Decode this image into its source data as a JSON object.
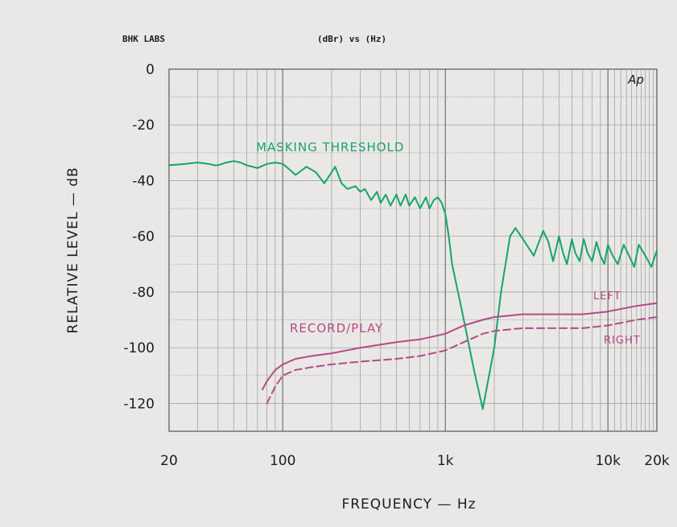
{
  "header": {
    "left": "BHK LABS",
    "center": "(dBr)  vs   (Hz)",
    "mark": "Ap"
  },
  "colors": {
    "masking": "#17a46a",
    "left": "#b54a82",
    "right": "#b54a82",
    "grid": "#999999",
    "background": "#e9e8e7"
  },
  "chart_data": {
    "type": "line",
    "xscale": "log",
    "xlim": [
      20,
      20000
    ],
    "ylim": [
      -130,
      0
    ],
    "xlabel": "FREQUENCY — Hz",
    "ylabel": "RELATIVE LEVEL — dB",
    "xticks": [
      {
        "value": 20,
        "label": "20"
      },
      {
        "value": 100,
        "label": "100"
      },
      {
        "value": 1000,
        "label": "1k"
      },
      {
        "value": 10000,
        "label": "10k"
      },
      {
        "value": 20000,
        "label": "20k"
      }
    ],
    "yticks": [
      {
        "value": 0,
        "label": "0"
      },
      {
        "value": -20,
        "label": "-20"
      },
      {
        "value": -40,
        "label": "-40"
      },
      {
        "value": -60,
        "label": "-60"
      },
      {
        "value": -80,
        "label": "-80"
      },
      {
        "value": -100,
        "label": "-100"
      },
      {
        "value": -120,
        "label": "-120"
      }
    ],
    "grid": true,
    "series": [
      {
        "name": "MASKING THRESHOLD",
        "style": "solid",
        "x": [
          20,
          25,
          30,
          35,
          38,
          40,
          45,
          50,
          55,
          60,
          70,
          80,
          90,
          100,
          110,
          120,
          140,
          160,
          170,
          180,
          200,
          210,
          230,
          250,
          280,
          300,
          320,
          350,
          380,
          400,
          430,
          460,
          500,
          530,
          570,
          600,
          650,
          700,
          760,
          800,
          850,
          900,
          950,
          1000,
          1050,
          1100,
          1300,
          1500,
          1700,
          2000,
          2200,
          2500,
          2700,
          3000,
          3500,
          4000,
          4300,
          4600,
          5000,
          5300,
          5600,
          6000,
          6300,
          6700,
          7100,
          7500,
          8000,
          8500,
          9000,
          9500,
          10000,
          10700,
          11500,
          12500,
          13500,
          14500,
          15500,
          17000,
          18500,
          20000
        ],
        "y": [
          -34.5,
          -34,
          -33.5,
          -34,
          -34.5,
          -34.5,
          -33.5,
          -33,
          -33.5,
          -34.5,
          -35.5,
          -34,
          -33.5,
          -34,
          -36,
          -38,
          -35,
          -37,
          -39,
          -41,
          -37,
          -35,
          -41,
          -43,
          -42,
          -44,
          -43,
          -47,
          -44,
          -48,
          -45,
          -49,
          -45,
          -49,
          -45,
          -49,
          -46,
          -50,
          -46,
          -50,
          -47,
          -46,
          -48,
          -52,
          -60,
          -70,
          -90,
          -108,
          -122,
          -100,
          -80,
          -60,
          -57,
          -61,
          -67,
          -58,
          -62,
          -69,
          -60,
          -66,
          -70,
          -61,
          -66,
          -69,
          -61,
          -66,
          -69,
          -62,
          -67,
          -70,
          -63,
          -67,
          -70,
          -63,
          -67,
          -71,
          -63,
          -67,
          -71,
          -65
        ],
        "label": "MASKING THRESHOLD"
      },
      {
        "name": "LEFT",
        "style": "solid",
        "x": [
          75,
          80,
          90,
          100,
          120,
          150,
          200,
          300,
          500,
          700,
          1000,
          1300,
          1700,
          2000,
          3000,
          5000,
          7000,
          10000,
          15000,
          20000
        ],
        "y": [
          -115,
          -112,
          -108,
          -106,
          -104,
          -103,
          -102,
          -100,
          -98,
          -97,
          -95,
          -92,
          -90,
          -89,
          -88,
          -88,
          -88,
          -87,
          -85,
          -84
        ],
        "label": "LEFT"
      },
      {
        "name": "RIGHT",
        "style": "dashed",
        "x": [
          80,
          90,
          100,
          120,
          150,
          200,
          300,
          500,
          700,
          1000,
          1300,
          1700,
          2000,
          3000,
          5000,
          7000,
          10000,
          15000,
          20000
        ],
        "y": [
          -120,
          -114,
          -110,
          -108,
          -107,
          -106,
          -105,
          -104,
          -103,
          -101,
          -98,
          -95,
          -94,
          -93,
          -93,
          -93,
          -92,
          -90,
          -89
        ],
        "label": "RIGHT"
      }
    ],
    "annotations": [
      {
        "text": "MASKING THRESHOLD",
        "color": "#17a46a"
      },
      {
        "text": "RECORD/PLAY",
        "color": "#b54a82"
      },
      {
        "text": "LEFT",
        "color": "#b54a82"
      },
      {
        "text": "RIGHT",
        "color": "#b54a82"
      }
    ]
  }
}
